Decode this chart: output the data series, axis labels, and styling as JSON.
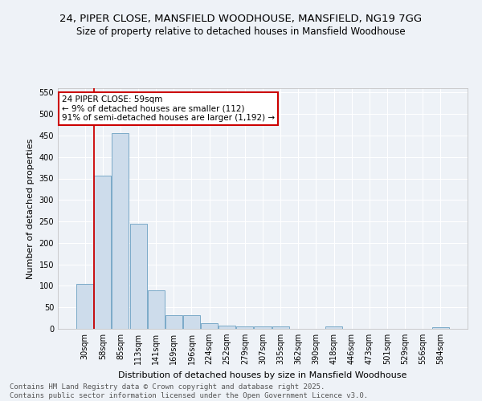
{
  "title_line1": "24, PIPER CLOSE, MANSFIELD WOODHOUSE, MANSFIELD, NG19 7GG",
  "title_line2": "Size of property relative to detached houses in Mansfield Woodhouse",
  "xlabel": "Distribution of detached houses by size in Mansfield Woodhouse",
  "ylabel": "Number of detached properties",
  "categories": [
    "30sqm",
    "58sqm",
    "85sqm",
    "113sqm",
    "141sqm",
    "169sqm",
    "196sqm",
    "224sqm",
    "252sqm",
    "279sqm",
    "307sqm",
    "335sqm",
    "362sqm",
    "390sqm",
    "418sqm",
    "446sqm",
    "473sqm",
    "501sqm",
    "529sqm",
    "556sqm",
    "584sqm"
  ],
  "values": [
    105,
    357,
    455,
    245,
    90,
    31,
    31,
    13,
    8,
    6,
    5,
    5,
    0,
    0,
    5,
    0,
    0,
    0,
    0,
    0,
    4
  ],
  "bar_color": "#cddceb",
  "bar_edge_color": "#7aaac8",
  "marker_label_line1": "24 PIPER CLOSE: 59sqm",
  "marker_label_line2": "← 9% of detached houses are smaller (112)",
  "marker_label_line3": "91% of semi-detached houses are larger (1,192) →",
  "marker_color": "#cc0000",
  "ylim": [
    0,
    560
  ],
  "yticks": [
    0,
    50,
    100,
    150,
    200,
    250,
    300,
    350,
    400,
    450,
    500,
    550
  ],
  "background_color": "#eef2f7",
  "grid_color": "#ffffff",
  "footer_line1": "Contains HM Land Registry data © Crown copyright and database right 2025.",
  "footer_line2": "Contains public sector information licensed under the Open Government Licence v3.0.",
  "title_fontsize": 9.5,
  "subtitle_fontsize": 8.5,
  "axis_label_fontsize": 8,
  "tick_fontsize": 7,
  "footer_fontsize": 6.5,
  "annotation_fontsize": 7.5
}
